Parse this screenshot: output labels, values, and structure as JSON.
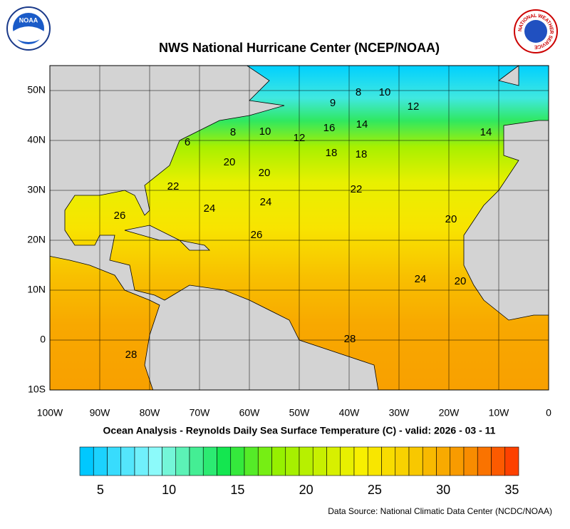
{
  "header": {
    "title": "NWS National Hurricane Center (NCEP/NOAA)",
    "noaa_logo": "NOAA",
    "nws_logo": "NATIONAL WEATHER SERVICE"
  },
  "map": {
    "xlim": [
      -100,
      0
    ],
    "ylim": [
      -10,
      55
    ],
    "xticks": [
      {
        "value": -100,
        "label": "100W"
      },
      {
        "value": -90,
        "label": "90W"
      },
      {
        "value": -80,
        "label": "80W"
      },
      {
        "value": -70,
        "label": "70W"
      },
      {
        "value": -60,
        "label": "60W"
      },
      {
        "value": -50,
        "label": "50W"
      },
      {
        "value": -40,
        "label": "40W"
      },
      {
        "value": -30,
        "label": "30W"
      },
      {
        "value": -20,
        "label": "20W"
      },
      {
        "value": -10,
        "label": "10W"
      },
      0
    ],
    "yticks": [
      {
        "value": -10,
        "label": "10S"
      },
      0,
      {
        "value": 10,
        "label": "10N"
      },
      {
        "value": 20,
        "label": "20N"
      },
      {
        "value": 30,
        "label": "30N"
      },
      {
        "value": 40,
        "label": "40N"
      },
      {
        "value": 50,
        "label": "50N"
      }
    ],
    "contour_labels": [
      "8",
      "10",
      "9",
      "12",
      "14",
      "8",
      "10",
      "12",
      "16",
      "14",
      "6",
      "18",
      "18",
      "20",
      "20",
      "22",
      "22",
      "26",
      "24",
      "24",
      "20",
      "26",
      "24",
      "20",
      "28",
      "28"
    ]
  },
  "subtitle": "Ocean Analysis - Reynolds Daily Sea Surface Temperature (C) - valid: 2026 - 03 - 11",
  "colorbar": {
    "lim": [
      4,
      36
    ],
    "ticks": [
      5,
      10,
      15,
      20,
      25,
      30,
      35
    ]
  },
  "footer": "Data Source: National Climatic Data Center (NCDC/NOAA)"
}
